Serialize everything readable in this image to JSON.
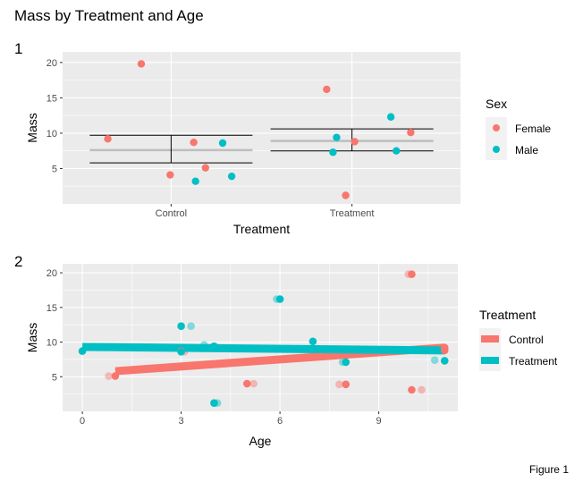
{
  "title": "Mass by Treatment and Age",
  "caption": "Figure 1",
  "colors": {
    "female": "#F8766D",
    "male": "#00BFC4",
    "control": "#F8766D",
    "treatment": "#00BFC4",
    "panel_bg": "#EBEBEB",
    "grid": "#FFFFFF",
    "mean_line": "#BEBEBE"
  },
  "chart_data": [
    {
      "tag": "1",
      "type": "scatter",
      "xlabel": "Treatment",
      "ylabel": "Mass",
      "categories": [
        "Control",
        "Treatment"
      ],
      "yticks": [
        5,
        10,
        15,
        20
      ],
      "ylim": [
        0,
        21.5
      ],
      "legend": {
        "title": "Sex",
        "position": "right",
        "items": [
          "Female",
          "Male"
        ]
      },
      "grid": true,
      "series": [
        {
          "name": "Female",
          "points": [
            {
              "x": "Control",
              "y": 19.8,
              "jitter": -0.33
            },
            {
              "x": "Control",
              "y": 9.2,
              "jitter": -0.7
            },
            {
              "x": "Control",
              "y": 8.7,
              "jitter": 0.25
            },
            {
              "x": "Control",
              "y": 5.1,
              "jitter": 0.38
            },
            {
              "x": "Control",
              "y": 4.1,
              "jitter": -0.01
            },
            {
              "x": "Treatment",
              "y": 16.2,
              "jitter": -0.28
            },
            {
              "x": "Treatment",
              "y": 10.1,
              "jitter": 0.65
            },
            {
              "x": "Treatment",
              "y": 8.8,
              "jitter": 0.03
            },
            {
              "x": "Treatment",
              "y": 1.2,
              "jitter": -0.07
            }
          ]
        },
        {
          "name": "Male",
          "points": [
            {
              "x": "Control",
              "y": 8.6,
              "jitter": 0.57
            },
            {
              "x": "Control",
              "y": 3.9,
              "jitter": 0.67
            },
            {
              "x": "Control",
              "y": 3.2,
              "jitter": 0.27
            },
            {
              "x": "Treatment",
              "y": 12.3,
              "jitter": 0.43
            },
            {
              "x": "Treatment",
              "y": 9.4,
              "jitter": -0.17
            },
            {
              "x": "Treatment",
              "y": 7.5,
              "jitter": 0.49
            },
            {
              "x": "Treatment",
              "y": 7.3,
              "jitter": -0.21
            }
          ]
        }
      ],
      "summary": [
        {
          "x": "Control",
          "mean": 7.6,
          "lower": 5.8,
          "upper": 9.7
        },
        {
          "x": "Treatment",
          "mean": 8.9,
          "lower": 7.5,
          "upper": 10.6
        }
      ]
    },
    {
      "tag": "2",
      "type": "scatter",
      "xlabel": "Age",
      "ylabel": "Mass",
      "xticks": [
        0,
        3,
        6,
        9
      ],
      "xlim": [
        -0.6,
        11.4
      ],
      "yticks": [
        5,
        10,
        15,
        20
      ],
      "ylim": [
        0,
        21.3
      ],
      "legend": {
        "title": "Treatment",
        "position": "right",
        "items": [
          "Control",
          "Treatment"
        ]
      },
      "grid": true,
      "series": [
        {
          "name": "Control",
          "points": [
            {
              "x": 1.0,
              "y": 5.1
            },
            {
              "x": 3.0,
              "y": 8.7
            },
            {
              "x": 5.0,
              "y": 4.0
            },
            {
              "x": 8.0,
              "y": 3.9
            },
            {
              "x": 10.0,
              "y": 19.8
            },
            {
              "x": 10.0,
              "y": 3.1
            },
            {
              "x": 11.0,
              "y": 8.8
            },
            {
              "x": 11.0,
              "y": 9.2
            }
          ],
          "jittered": [
            {
              "x": 0.8,
              "y": 5.1
            },
            {
              "x": 3.1,
              "y": 8.6
            },
            {
              "x": 5.2,
              "y": 4.0
            },
            {
              "x": 7.8,
              "y": 3.9
            },
            {
              "x": 9.9,
              "y": 19.8
            },
            {
              "x": 10.3,
              "y": 3.1
            },
            {
              "x": 10.8,
              "y": 8.9
            }
          ],
          "fit": [
            1.0,
            5.8,
            11.0,
            9.2
          ]
        },
        {
          "name": "Treatment",
          "points": [
            {
              "x": 0.0,
              "y": 8.7
            },
            {
              "x": 3.0,
              "y": 12.3
            },
            {
              "x": 3.0,
              "y": 8.6
            },
            {
              "x": 4.0,
              "y": 9.4
            },
            {
              "x": 4.0,
              "y": 1.2
            },
            {
              "x": 6.0,
              "y": 16.2
            },
            {
              "x": 7.0,
              "y": 10.1
            },
            {
              "x": 8.0,
              "y": 7.1
            },
            {
              "x": 11.0,
              "y": 7.3
            }
          ],
          "jittered": [
            {
              "x": 3.3,
              "y": 12.3
            },
            {
              "x": 3.7,
              "y": 9.6
            },
            {
              "x": 4.1,
              "y": 1.2
            },
            {
              "x": 5.9,
              "y": 16.2
            },
            {
              "x": 7.9,
              "y": 7.1
            },
            {
              "x": 10.7,
              "y": 7.4
            }
          ],
          "fit": [
            0.0,
            9.3,
            11.0,
            8.8
          ]
        }
      ]
    }
  ]
}
